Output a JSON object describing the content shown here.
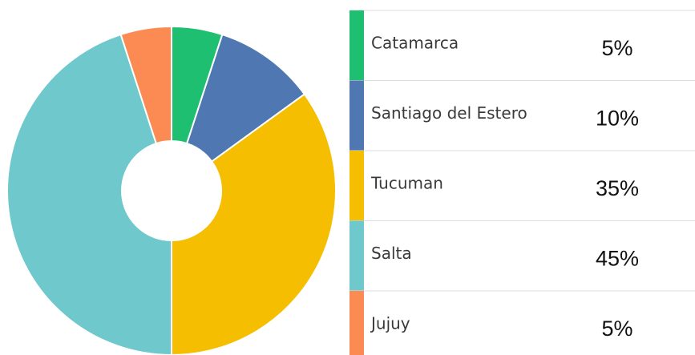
{
  "chart_data": {
    "type": "donut",
    "categories": [
      "Catamarca",
      "Santiago del Estero",
      "Tucuman",
      "Salta",
      "Jujuy"
    ],
    "values": [
      5,
      10,
      35,
      45,
      5
    ],
    "value_labels": [
      "5%",
      "10%",
      "35%",
      "45%",
      "5%"
    ],
    "colors": [
      "#1fbf72",
      "#4f78b3",
      "#f6be00",
      "#6ec8cc",
      "#fb8b52"
    ]
  }
}
